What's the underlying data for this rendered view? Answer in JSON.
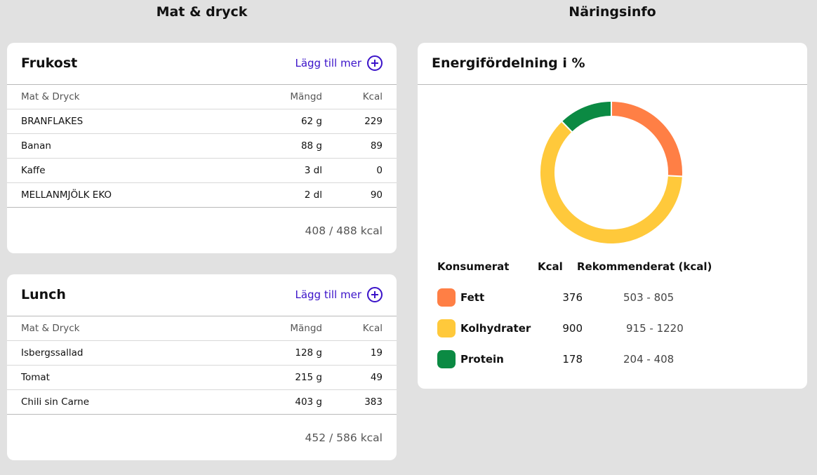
{
  "left_column_title": "Mat & dryck",
  "right_column_title": "Näringsinfo",
  "breakfast": {
    "title": "Frukost",
    "add_label": "Lägg till mer",
    "headers": {
      "name": "Mat & Dryck",
      "amount": "Mängd",
      "kcal": "Kcal"
    },
    "items": [
      {
        "name": "BRANFLAKES",
        "amount": "62 g",
        "kcal": "229"
      },
      {
        "name": "Banan",
        "amount": "88 g",
        "kcal": "89"
      },
      {
        "name": "Kaffe",
        "amount": "3 dl",
        "kcal": "0"
      },
      {
        "name": "MELLANMJÖLK EKO",
        "amount": "2 dl",
        "kcal": "90"
      }
    ],
    "total": "408 / 488 kcal"
  },
  "lunch": {
    "title": "Lunch",
    "add_label": "Lägg till mer",
    "headers": {
      "name": "Mat & Dryck",
      "amount": "Mängd",
      "kcal": "Kcal"
    },
    "items": [
      {
        "name": "Isbergssallad",
        "amount": "128 g",
        "kcal": "19"
      },
      {
        "name": "Tomat",
        "amount": "215 g",
        "kcal": "49"
      },
      {
        "name": "Chili sin Carne",
        "amount": "403 g",
        "kcal": "383"
      }
    ],
    "total": "452 / 586 kcal"
  },
  "energy": {
    "title": "Energifördelning i %",
    "legend_headers": {
      "consumed": "Konsumerat",
      "kcal": "Kcal",
      "recommended": "Rekommenderat (kcal)"
    },
    "rows": [
      {
        "name": "Fett",
        "kcal": "376",
        "recommended": "503 - 805",
        "color": "#ff7f45"
      },
      {
        "name": "Kolhydrater",
        "kcal": "900",
        "recommended": "915 - 1220",
        "color": "#ffc93b"
      },
      {
        "name": "Protein",
        "kcal": "178",
        "recommended": "204 - 408",
        "color": "#0b8a43"
      }
    ]
  },
  "chart_data": {
    "type": "pie",
    "title": "Energifördelning i %",
    "categories": [
      "Fett",
      "Kolhydrater",
      "Protein"
    ],
    "values": [
      376,
      900,
      178
    ],
    "colors": [
      "#ff7f45",
      "#ffc93b",
      "#0b8a43"
    ],
    "style": "donut"
  }
}
